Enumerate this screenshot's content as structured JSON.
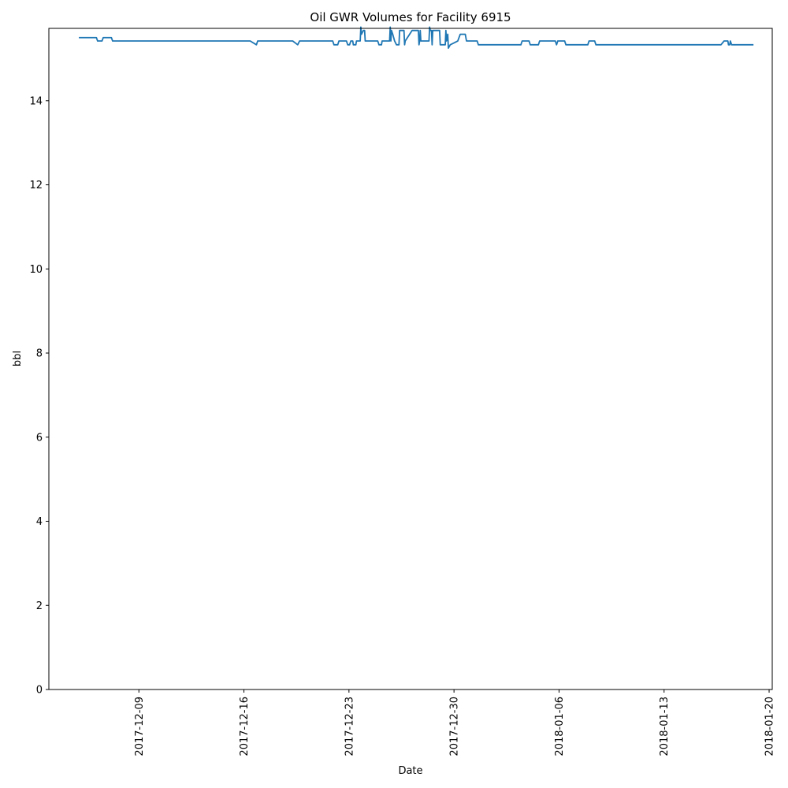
{
  "chart_data": {
    "type": "line",
    "title": "Oil GWR Volumes for Facility 6915",
    "xlabel": "Date",
    "ylabel": "bbl",
    "xlim": [
      "2017-12-03T00:00",
      "2018-01-20T05:00"
    ],
    "ylim": [
      0,
      15.72
    ],
    "x_ticks": [
      "2017-12-09",
      "2017-12-16",
      "2017-12-23",
      "2017-12-30",
      "2018-01-06",
      "2018-01-13",
      "2018-01-20"
    ],
    "y_ticks": [
      0,
      2,
      4,
      6,
      8,
      10,
      12,
      14
    ],
    "grid": false,
    "legend": "none",
    "series": [
      {
        "color": "#1f77b4",
        "points": [
          [
            "2017-12-05T00:00",
            15.5
          ],
          [
            "2017-12-06T04:00",
            15.5
          ],
          [
            "2017-12-06T06:00",
            15.42
          ],
          [
            "2017-12-06T13:00",
            15.42
          ],
          [
            "2017-12-06T15:00",
            15.5
          ],
          [
            "2017-12-07T04:00",
            15.5
          ],
          [
            "2017-12-07T06:00",
            15.42
          ],
          [
            "2017-12-16T10:00",
            15.42
          ],
          [
            "2017-12-16T20:00",
            15.33
          ],
          [
            "2017-12-16T22:00",
            15.42
          ],
          [
            "2017-12-19T06:00",
            15.42
          ],
          [
            "2017-12-19T14:00",
            15.33
          ],
          [
            "2017-12-19T17:00",
            15.42
          ],
          [
            "2017-12-21T22:00",
            15.42
          ],
          [
            "2017-12-22T00:00",
            15.33
          ],
          [
            "2017-12-22T06:00",
            15.33
          ],
          [
            "2017-12-22T08:00",
            15.42
          ],
          [
            "2017-12-22T20:00",
            15.42
          ],
          [
            "2017-12-22T22:00",
            15.33
          ],
          [
            "2017-12-23T01:00",
            15.33
          ],
          [
            "2017-12-23T03:00",
            15.42
          ],
          [
            "2017-12-23T06:00",
            15.42
          ],
          [
            "2017-12-23T07:00",
            15.33
          ],
          [
            "2017-12-23T11:00",
            15.33
          ],
          [
            "2017-12-23T12:00",
            15.42
          ],
          [
            "2017-12-23T18:00",
            15.42
          ],
          [
            "2017-12-23T19:00",
            15.75
          ],
          [
            "2017-12-23T20:00",
            15.58
          ],
          [
            "2017-12-23T23:00",
            15.67
          ],
          [
            "2017-12-24T01:00",
            15.67
          ],
          [
            "2017-12-24T02:00",
            15.42
          ],
          [
            "2017-12-24T22:00",
            15.42
          ],
          [
            "2017-12-25T00:00",
            15.33
          ],
          [
            "2017-12-25T04:00",
            15.33
          ],
          [
            "2017-12-25T05:00",
            15.42
          ],
          [
            "2017-12-25T17:00",
            15.42
          ],
          [
            "2017-12-25T18:00",
            15.75
          ],
          [
            "2017-12-25T19:00",
            15.42
          ],
          [
            "2017-12-25T20:00",
            15.67
          ],
          [
            "2017-12-25T22:00",
            15.58
          ],
          [
            "2017-12-26T01:00",
            15.42
          ],
          [
            "2017-12-26T04:00",
            15.33
          ],
          [
            "2017-12-26T08:00",
            15.33
          ],
          [
            "2017-12-26T09:00",
            15.67
          ],
          [
            "2017-12-26T16:00",
            15.67
          ],
          [
            "2017-12-26T17:00",
            15.33
          ],
          [
            "2017-12-26T18:00",
            15.42
          ],
          [
            "2017-12-27T05:00",
            15.67
          ],
          [
            "2017-12-27T15:00",
            15.67
          ],
          [
            "2017-12-27T16:00",
            15.33
          ],
          [
            "2017-12-27T17:00",
            15.42
          ],
          [
            "2017-12-27T18:00",
            15.67
          ],
          [
            "2017-12-27T19:00",
            15.42
          ],
          [
            "2017-12-28T08:00",
            15.42
          ],
          [
            "2017-12-28T09:00",
            15.75
          ],
          [
            "2017-12-28T10:00",
            15.67
          ],
          [
            "2017-12-28T12:00",
            15.67
          ],
          [
            "2017-12-28T13:00",
            15.33
          ],
          [
            "2017-12-28T14:00",
            15.67
          ],
          [
            "2017-12-29T01:00",
            15.67
          ],
          [
            "2017-12-29T02:00",
            15.33
          ],
          [
            "2017-12-29T10:00",
            15.33
          ],
          [
            "2017-12-29T11:00",
            15.67
          ],
          [
            "2017-12-29T12:00",
            15.42
          ],
          [
            "2017-12-29T14:00",
            15.58
          ],
          [
            "2017-12-29T15:00",
            15.25
          ],
          [
            "2017-12-29T18:00",
            15.33
          ],
          [
            "2017-12-30T06:00",
            15.42
          ],
          [
            "2017-12-30T10:00",
            15.58
          ],
          [
            "2017-12-30T18:00",
            15.58
          ],
          [
            "2017-12-30T20:00",
            15.42
          ],
          [
            "2017-12-31T13:00",
            15.42
          ],
          [
            "2017-12-31T15:00",
            15.33
          ],
          [
            "2018-01-03T11:00",
            15.33
          ],
          [
            "2018-01-03T13:00",
            15.42
          ],
          [
            "2018-01-04T00:00",
            15.42
          ],
          [
            "2018-01-04T02:00",
            15.33
          ],
          [
            "2018-01-04T15:00",
            15.33
          ],
          [
            "2018-01-04T17:00",
            15.42
          ],
          [
            "2018-01-05T18:00",
            15.42
          ],
          [
            "2018-01-05T20:00",
            15.33
          ],
          [
            "2018-01-05T22:00",
            15.42
          ],
          [
            "2018-01-06T09:00",
            15.42
          ],
          [
            "2018-01-06T11:00",
            15.33
          ],
          [
            "2018-01-07T22:00",
            15.33
          ],
          [
            "2018-01-08T00:00",
            15.42
          ],
          [
            "2018-01-08T09:00",
            15.42
          ],
          [
            "2018-01-08T11:00",
            15.33
          ],
          [
            "2018-01-16T19:00",
            15.33
          ],
          [
            "2018-01-17T00:00",
            15.42
          ],
          [
            "2018-01-17T06:00",
            15.42
          ],
          [
            "2018-01-17T07:00",
            15.33
          ],
          [
            "2018-01-17T09:00",
            15.33
          ],
          [
            "2018-01-17T10:00",
            15.42
          ],
          [
            "2018-01-17T12:00",
            15.33
          ],
          [
            "2018-01-18T23:00",
            15.33
          ]
        ]
      }
    ]
  }
}
